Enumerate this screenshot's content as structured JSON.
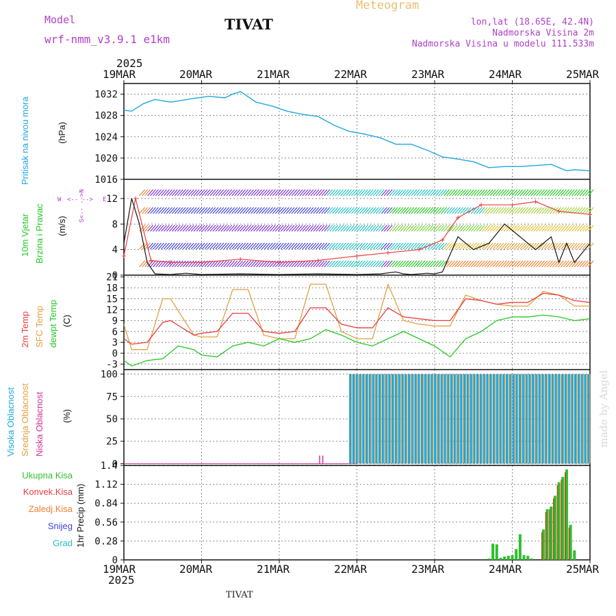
{
  "header": {
    "model_label": "Model",
    "model_name": "wrf-nmm_v3.9.1  e1km",
    "station": "TIVAT",
    "meteogram": "Meteogram",
    "lonlat": "lon,lat (18.65E, 42.4N)",
    "elevation": "Nadmorska Visina 2m",
    "model_elevation": "Nadmorska Visina u modelu 111.533m"
  },
  "time_axis": {
    "year": "2025",
    "dates": [
      "19MAR",
      "20MAR",
      "21MAR",
      "22MAR",
      "23MAR",
      "24MAR",
      "25MAR"
    ]
  },
  "footer": {
    "station": "TIVAT",
    "credit": "made by Angel"
  },
  "colors": {
    "pressure": "#1ea6e0",
    "t2m": "#e83c3c",
    "sfc": "#e0a040",
    "dew": "#22c822",
    "high": "#1ea6e0",
    "mid": "#e0a040",
    "low": "#d62f8f",
    "precip": "#2fbf2f",
    "conv": "#e83c3c",
    "frz": "#f08030",
    "snow": "#4040e0",
    "grad": "#20c0c0"
  },
  "panels": {
    "pressure": {
      "ylabel_side": "Pritisak na nivou mora",
      "unit": "(hPa)",
      "ticks": [
        "1032",
        "1028",
        "1024",
        "1020",
        "1016"
      ]
    },
    "wind": {
      "ylabel_a": "10m Vjetar",
      "ylabel_b": "Brzina i Pravac",
      "unit": "(m/s)",
      "ticks": [
        "12",
        "8",
        "4",
        "0"
      ],
      "compass": {
        "n": "N",
        "s": "S",
        "w": "W",
        "e": "E"
      }
    },
    "temp": {
      "label_t2m": "2m Temp",
      "label_sfc": "SFC Temp",
      "label_dew": "dewpt Temp",
      "unit": "(C)",
      "ticks": [
        "21",
        "18",
        "15",
        "12",
        "9",
        "6",
        "3",
        "0",
        "-3"
      ]
    },
    "cloud": {
      "label_high": "Visoka Oblacnost",
      "label_mid": "Srednja Oblacnost",
      "label_low": "Niska Oblacnost",
      "unit": "(%)",
      "ticks": [
        "100",
        "75",
        "50",
        "25",
        "0"
      ]
    },
    "precip": {
      "legend": [
        "Ukupna Kisa",
        "Konvek.Kisa",
        "Zaledj.Kisa",
        "Snijeg",
        "Grad"
      ],
      "ylabel": "1hr Precip (mm)",
      "ticks": [
        "1.4",
        "1.12",
        "0.84",
        "0.56",
        "0.28",
        "0"
      ]
    }
  },
  "chart_data": [
    {
      "type": "line",
      "title": "",
      "ylabel": "(hPa)",
      "ylim": [
        1016,
        1034
      ],
      "series": [
        {
          "name": "Pritisak na nivou mora",
          "x_days": [
            0,
            0.1,
            0.25,
            0.4,
            0.6,
            0.9,
            1.1,
            1.3,
            1.4,
            1.5,
            1.7,
            1.9,
            2.1,
            2.3,
            2.5,
            2.7,
            2.9,
            3.1,
            3.3,
            3.5,
            3.7,
            3.9,
            4.1,
            4.3,
            4.5,
            4.7,
            4.9,
            5.1,
            5.3,
            5.5,
            5.7,
            5.8,
            6.0
          ],
          "values": [
            1029,
            1028.8,
            1030.2,
            1031,
            1030.5,
            1031.2,
            1031.6,
            1031.3,
            1032,
            1032.5,
            1030.5,
            1029.8,
            1028.8,
            1028.2,
            1027.8,
            1026.2,
            1025,
            1024.5,
            1023.8,
            1022.6,
            1022.6,
            1021.5,
            1020.2,
            1019.8,
            1019.3,
            1018.2,
            1018.4,
            1018.4,
            1018.6,
            1018.8,
            1017.6,
            1017.8,
            1017.6
          ]
        }
      ]
    },
    {
      "type": "line",
      "title": "",
      "ylabel": "(m/s)",
      "ylim": [
        0,
        15
      ],
      "series": [
        {
          "name": "speed",
          "x_days": [
            0,
            0.1,
            0.2,
            0.3,
            0.4,
            0.6,
            0.8,
            1,
            1.5,
            2,
            2.5,
            3,
            3.3,
            3.5,
            3.6,
            3.7,
            3.9,
            4,
            4.1,
            4.3,
            4.5,
            4.7,
            4.9,
            5.1,
            5.3,
            5.5,
            5.6,
            5.7,
            5.8,
            6
          ],
          "values": [
            5,
            12,
            8,
            2,
            0.2,
            0.1,
            0.3,
            0.1,
            0.2,
            0.1,
            0.2,
            0.1,
            0.2,
            0.5,
            0.2,
            0.1,
            0.3,
            0.2,
            0.5,
            6,
            4,
            5,
            8,
            6,
            4,
            6,
            2,
            5,
            2,
            5
          ]
        }
      ]
    },
    {
      "type": "line",
      "title": "",
      "ylabel": "(C)",
      "ylim": [
        -4.5,
        21.5
      ],
      "series": [
        {
          "name": "2m Temp",
          "x_days": [
            0,
            0.1,
            0.3,
            0.5,
            0.6,
            0.9,
            1,
            1.2,
            1.4,
            1.6,
            1.8,
            2,
            2.2,
            2.4,
            2.6,
            2.8,
            3,
            3.2,
            3.4,
            3.6,
            3.8,
            4,
            4.2,
            4.4,
            4.6,
            4.8,
            5,
            5.2,
            5.4,
            5.6,
            5.8,
            6
          ],
          "values": [
            4,
            2.5,
            3,
            8.5,
            9,
            5,
            5.5,
            6,
            11,
            11,
            6,
            5.5,
            6,
            12.5,
            12.5,
            8,
            7,
            7,
            12.5,
            10,
            9.5,
            9,
            9,
            15,
            14.5,
            13.5,
            14,
            14,
            16.5,
            16,
            14.5,
            14
          ]
        },
        {
          "name": "SFC Temp",
          "x_days": [
            0,
            0.1,
            0.3,
            0.5,
            0.6,
            0.9,
            1,
            1.2,
            1.4,
            1.6,
            1.8,
            2,
            2.2,
            2.4,
            2.6,
            2.8,
            3,
            3.2,
            3.4,
            3.6,
            3.8,
            4,
            4.2,
            4.4,
            4.6,
            4.8,
            5,
            5.2,
            5.4,
            5.6,
            5.8,
            6
          ],
          "values": [
            8,
            1,
            1,
            15,
            15,
            5,
            4.5,
            4.5,
            17.5,
            17.5,
            5,
            4,
            4,
            19,
            19,
            6,
            4,
            4,
            19,
            9,
            8,
            7.5,
            7.5,
            16,
            14.5,
            13.5,
            13,
            13,
            17,
            16,
            13,
            13
          ]
        },
        {
          "name": "dewpt Temp",
          "x_days": [
            0,
            0.1,
            0.3,
            0.5,
            0.7,
            0.9,
            1,
            1.2,
            1.4,
            1.6,
            1.8,
            2,
            2.2,
            2.4,
            2.6,
            2.8,
            3,
            3.2,
            3.4,
            3.6,
            3.8,
            4,
            4.2,
            4.4,
            4.6,
            4.8,
            5,
            5.2,
            5.4,
            5.6,
            5.8,
            6
          ],
          "values": [
            -2,
            -3.5,
            -2,
            -1.5,
            2,
            1,
            -0.5,
            -1,
            2,
            3,
            2,
            4,
            3,
            4,
            6.5,
            5,
            3,
            2,
            4,
            6,
            4,
            2,
            -1,
            4,
            6,
            9,
            10,
            10,
            10.5,
            10,
            9,
            9.5
          ]
        }
      ]
    },
    {
      "type": "bar",
      "title": "",
      "ylabel": "(%)",
      "ylim": [
        0,
        100
      ],
      "series": [
        {
          "name": "Visoka Oblacnost",
          "note_values": "0 until 22MAR ~21h, then 100 in nearly every hour"
        },
        {
          "name": "Srednja Oblacnost",
          "note_values": "0 until 22MAR ~21h, then mostly 100"
        },
        {
          "name": "Niska Oblacnost",
          "note_values": "small ~8 at 21MAR 12h, mostly 0-100 scattered after 22MAR"
        }
      ]
    },
    {
      "type": "bar",
      "title": "",
      "ylabel": "1hr Precip (mm)",
      "ylim": [
        0,
        1.4
      ],
      "series": [
        {
          "name": "Ukupna Kisa",
          "x_days": [
            4.7,
            4.75,
            4.8,
            4.85,
            4.9,
            4.95,
            5.0,
            5.05,
            5.1,
            5.15,
            5.2,
            5.25,
            5.4,
            5.45,
            5.5,
            5.55,
            5.6,
            5.65,
            5.7,
            5.75,
            5.8
          ],
          "values": [
            0.02,
            0.24,
            0.23,
            0.03,
            0.05,
            0.06,
            0.07,
            0.16,
            0.38,
            0.07,
            0.06,
            0.02,
            0.45,
            0.75,
            0.79,
            0.95,
            1.15,
            1.23,
            1.34,
            0.52,
            0.14
          ]
        }
      ]
    }
  ]
}
